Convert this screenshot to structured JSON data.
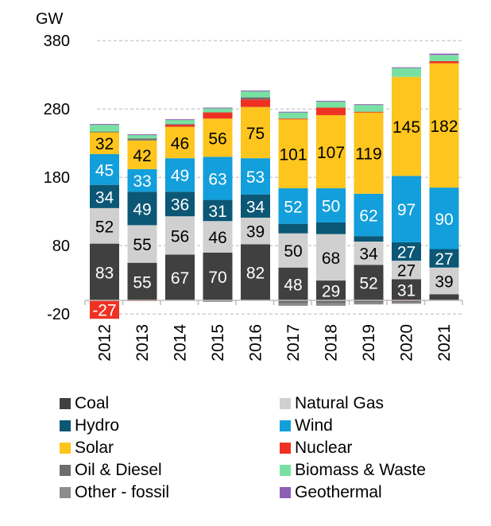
{
  "chart_data": {
    "type": "bar",
    "stacked": true,
    "title": "",
    "xlabel": "",
    "ylabel": "GW",
    "ylim": [
      -20,
      380
    ],
    "yticks": [
      -20,
      80,
      180,
      280,
      380
    ],
    "grid": true,
    "legend_position": "bottom",
    "categories": [
      "2012",
      "2013",
      "2014",
      "2015",
      "2016",
      "2017",
      "2018",
      "2019",
      "2020",
      "2021"
    ],
    "series": [
      {
        "name": "Coal",
        "color": "#404040",
        "labelColor": "#ffffff",
        "values": [
          83,
          55,
          67,
          70,
          82,
          48,
          29,
          52,
          31,
          9
        ],
        "labels": [
          "83",
          "55",
          "67",
          "70",
          "82",
          "48",
          "29",
          "52",
          "31",
          ""
        ]
      },
      {
        "name": "Natural Gas",
        "color": "#d0d0d0",
        "labelColor": "#000000",
        "values": [
          52,
          55,
          56,
          46,
          39,
          50,
          68,
          34,
          27,
          39
        ],
        "labels": [
          "52",
          "55",
          "56",
          "46",
          "39",
          "50",
          "68",
          "34",
          "27",
          "39"
        ]
      },
      {
        "name": "Hydro",
        "color": "#0b5775",
        "labelColor": "#ffffff",
        "values": [
          34,
          49,
          36,
          31,
          34,
          14,
          17,
          8,
          27,
          27
        ],
        "labels": [
          "34",
          "49",
          "36",
          "31",
          "34",
          "",
          "",
          "",
          "27",
          "27"
        ]
      },
      {
        "name": "Wind",
        "color": "#129fdb",
        "labelColor": "#ffffff",
        "values": [
          45,
          33,
          49,
          63,
          53,
          52,
          50,
          62,
          97,
          90
        ],
        "labels": [
          "45",
          "33",
          "49",
          "63",
          "53",
          "52",
          "50",
          "62",
          "97",
          "90"
        ]
      },
      {
        "name": "Solar",
        "color": "#fdc51e",
        "labelColor": "#000000",
        "values": [
          32,
          42,
          46,
          56,
          75,
          101,
          107,
          119,
          145,
          182
        ],
        "labels": [
          "32",
          "42",
          "46",
          "56",
          "75",
          "101",
          "107",
          "119",
          "145",
          "182"
        ]
      },
      {
        "name": "Nuclear",
        "color": "#ef3124",
        "labelColor": "#ffffff",
        "values": [
          -27,
          -1,
          3,
          9,
          11,
          1,
          11,
          1,
          -1,
          3
        ],
        "labels": [
          "-27",
          "",
          "",
          "",
          "",
          "",
          "",
          "",
          "",
          ""
        ]
      },
      {
        "name": "Oil & Diesel",
        "color": "#6d6d70",
        "labelColor": "#ffffff",
        "values": [
          1,
          3,
          1,
          -2,
          3,
          -4,
          -4,
          -3,
          -2,
          0
        ],
        "labels": [
          "",
          "",
          "",
          "",
          "",
          "",
          "",
          "",
          "",
          ""
        ]
      },
      {
        "name": "Biomass & Waste",
        "color": "#78e1a2",
        "labelColor": "#000000",
        "values": [
          10,
          5,
          6,
          6,
          9,
          9,
          9,
          10,
          13,
          9
        ],
        "labels": [
          "",
          "",
          "",
          "",
          "",
          "",
          "",
          "",
          "",
          ""
        ]
      },
      {
        "name": "Other - fossil",
        "color": "#8c8c8c",
        "labelColor": "#ffffff",
        "values": [
          0,
          0,
          0,
          0,
          0,
          -4,
          -4,
          -3,
          -2,
          0
        ],
        "labels": [
          "",
          "",
          "",
          "",
          "",
          "",
          "",
          "",
          "",
          ""
        ]
      },
      {
        "name": "Geothermal",
        "color": "#8e5eb5",
        "labelColor": "#ffffff",
        "values": [
          1,
          1,
          1,
          1,
          1,
          1,
          1,
          1,
          1,
          2
        ],
        "labels": [
          "",
          "",
          "",
          "",
          "",
          "",
          "",
          "",
          "",
          ""
        ]
      }
    ]
  },
  "legend": {
    "items": [
      {
        "label": "Coal",
        "color": "#404040"
      },
      {
        "label": "Natural Gas",
        "color": "#d0d0d0"
      },
      {
        "label": "Hydro",
        "color": "#0b5775"
      },
      {
        "label": "Wind",
        "color": "#129fdb"
      },
      {
        "label": "Solar",
        "color": "#fdc51e"
      },
      {
        "label": "Nuclear",
        "color": "#ef3124"
      },
      {
        "label": "Oil & Diesel",
        "color": "#6d6d70"
      },
      {
        "label": "Biomass & Waste",
        "color": "#78e1a2"
      },
      {
        "label": "Other - fossil",
        "color": "#8c8c8c"
      },
      {
        "label": "Geothermal",
        "color": "#8e5eb5"
      }
    ]
  }
}
